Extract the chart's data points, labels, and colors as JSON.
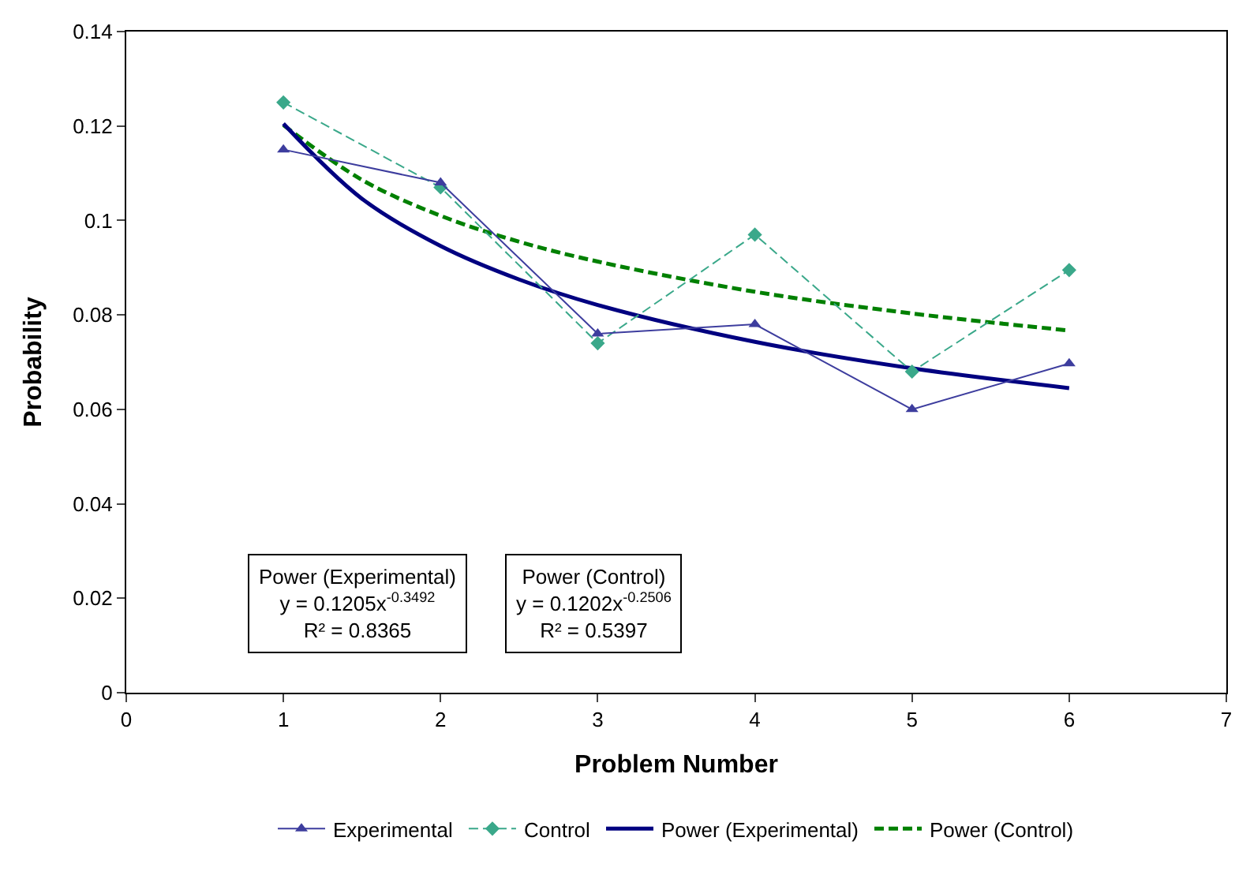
{
  "chart_data": {
    "type": "line",
    "xlabel": "Problem Number",
    "ylabel": "Probability",
    "xlim": [
      0,
      7
    ],
    "xticks": [
      0,
      1,
      2,
      3,
      4,
      5,
      6,
      7
    ],
    "ylim": [
      0,
      0.14
    ],
    "yticks": [
      0,
      0.02,
      0.04,
      0.06,
      0.08,
      0.1,
      0.12,
      0.14
    ],
    "legend": "bottom",
    "series": [
      {
        "name": "Experimental",
        "color": "#3d3d9e",
        "x": [
          1,
          2,
          3,
          4,
          5,
          6
        ],
        "values": [
          0.115,
          0.108,
          0.076,
          0.078,
          0.06,
          0.0697
        ],
        "marker": "triangle",
        "line_style": "solid"
      },
      {
        "name": "Control",
        "color": "#3aa88a",
        "x": [
          1,
          2,
          3,
          4,
          5,
          6
        ],
        "values": [
          0.125,
          0.107,
          0.074,
          0.097,
          0.068,
          0.0895
        ],
        "marker": "diamond",
        "line_style": "dashed"
      },
      {
        "name": "Power (Experimental)",
        "color": "#000080",
        "x": [
          1,
          1.5,
          2,
          2.5,
          3,
          4,
          5,
          6
        ],
        "values": [
          0.1205,
          0.1046,
          0.0946,
          0.0875,
          0.0821,
          0.0743,
          0.0687,
          0.0645
        ],
        "marker": "none",
        "line_style": "solid"
      },
      {
        "name": "Power (Control)",
        "color": "#008000",
        "x": [
          1,
          1.5,
          2,
          2.5,
          3,
          4,
          5,
          6
        ],
        "values": [
          0.1202,
          0.1086,
          0.101,
          0.0955,
          0.0913,
          0.0849,
          0.0803,
          0.0767
        ],
        "marker": "none",
        "line_style": "dashed"
      }
    ],
    "annotations": [
      "Power (Experimental)\ny = 0.1205x$^{-0.3492}$\nR² = 0.8365",
      "Power (Control)\ny = 0.1202x$^{-0.2506}$\nR² = 0.5397"
    ]
  }
}
